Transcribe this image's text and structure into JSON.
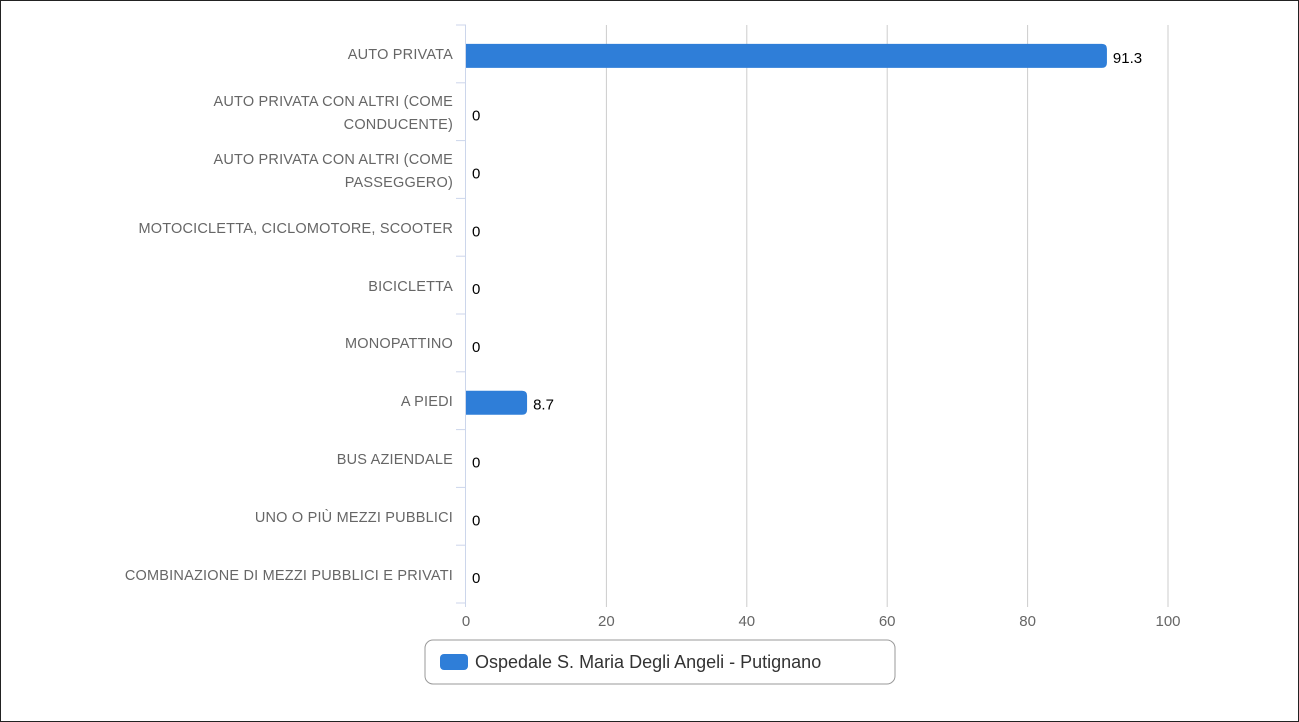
{
  "chart_data": {
    "type": "bar",
    "orientation": "horizontal",
    "categories": [
      "AUTO PRIVATA",
      "AUTO PRIVATA CON ALTRI (COME CONDUCENTE)",
      "AUTO PRIVATA CON ALTRI (COME PASSEGGERO)",
      "MOTOCICLETTA, CICLOMOTORE, SCOOTER",
      "BICICLETTA",
      "MONOPATTINO",
      "A PIEDI",
      "BUS AZIENDALE",
      "UNO O PIÙ MEZZI PUBBLICI",
      "COMBINAZIONE DI MEZZI PUBBLICI E PRIVATI"
    ],
    "series": [
      {
        "name": "Ospedale S. Maria Degli Angeli - Putignano",
        "color": "#2f7ed8",
        "values": [
          91.3,
          0,
          0,
          0,
          0,
          0,
          8.7,
          0,
          0,
          0
        ]
      }
    ],
    "xlim": [
      0,
      100
    ],
    "xticks": [
      0,
      20,
      40,
      60,
      80,
      100
    ],
    "grid": true,
    "legend": "bottom"
  }
}
